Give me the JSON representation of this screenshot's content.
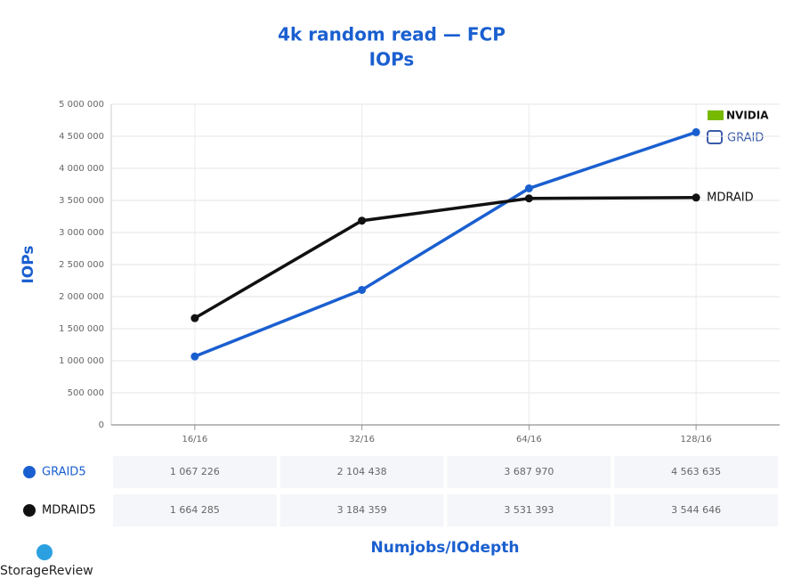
{
  "chart_data": {
    "type": "line",
    "title": "4k random read — FCP",
    "subtitle": "IOPs",
    "y_label": "IOPs",
    "x_label": "Numjobs/IOdepth",
    "categories": [
      "16/16",
      "32/16",
      "64/16",
      "128/16"
    ],
    "series": [
      {
        "name": "GRAID5",
        "color": "#1a5fd0",
        "values": [
          1067226,
          2104438,
          3687970,
          4563635
        ],
        "value_labels": [
          "1 067 226",
          "2 104 438",
          "3 687 970",
          "4 563 635"
        ]
      },
      {
        "name": "MDRAID5",
        "color": "#111111",
        "values": [
          1664285,
          3184359,
          3531393,
          3544646
        ],
        "value_labels": [
          "1 664 285",
          "3 184 359",
          "3 531 393",
          "3 544 646"
        ]
      }
    ],
    "ylim": [
      0,
      5000000
    ],
    "yticks": [
      0,
      {
        "value": 500000,
        "label": "500 000"
      },
      {
        "value": 1000000,
        "label": "1 000 000"
      },
      {
        "value": 1500000,
        "label": "1 500 000"
      },
      {
        "value": 2000000,
        "label": "2 000 000"
      },
      {
        "value": 2500000,
        "label": "2 500 000"
      },
      {
        "value": 3000000,
        "label": "3 000 000"
      },
      {
        "value": 3500000,
        "label": "3 500 000"
      },
      {
        "value": 4000000,
        "label": "4 000 000"
      },
      {
        "value": 4500000,
        "label": "4 500 000"
      },
      {
        "value": 5000000,
        "label": "5 000 000"
      }
    ],
    "grid": true,
    "line_label": "MDRAID",
    "logos": [
      "NVIDIA",
      "GRAID"
    ],
    "watermark": "StorageReview"
  }
}
